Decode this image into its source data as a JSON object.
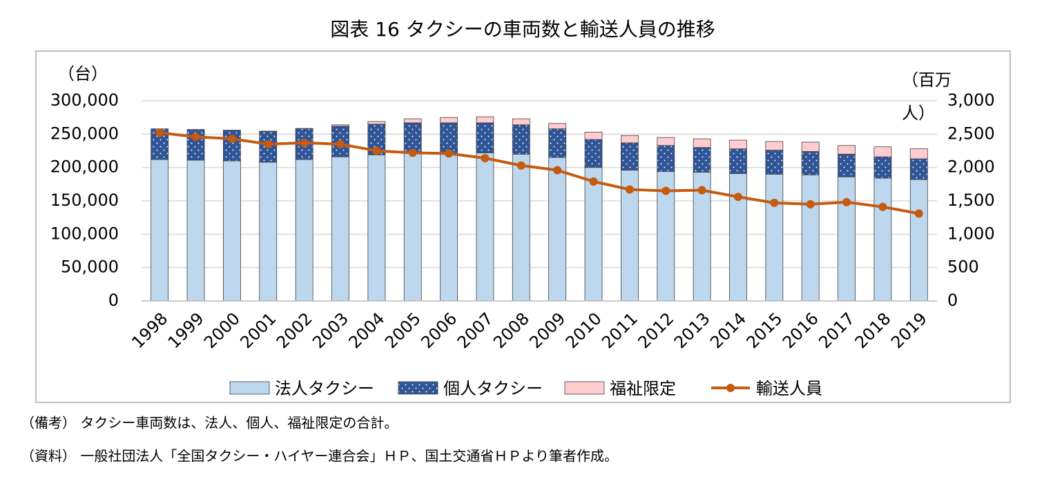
{
  "chart_data": {
    "type": "bar-line",
    "title": "図表 16 タクシーの車両数と輸送人員の推移",
    "y_label": "（台）",
    "y2_label": "（百万人）",
    "categories": [
      "1998",
      "1999",
      "2000",
      "2001",
      "2002",
      "2003",
      "2004",
      "2005",
      "2006",
      "2007",
      "2008",
      "2009",
      "2010",
      "2011",
      "2012",
      "2013",
      "2014",
      "2015",
      "2016",
      "2017",
      "2018",
      "2019"
    ],
    "series": [
      {
        "name": "法人タクシー",
        "type": "bar",
        "color": "#bdd7ee",
        "values": [
          212000,
          211000,
          210000,
          208000,
          212000,
          216000,
          219000,
          221000,
          221000,
          222000,
          220000,
          215000,
          200000,
          196000,
          194000,
          193000,
          191000,
          190000,
          189000,
          186000,
          184000,
          182000
        ]
      },
      {
        "name": "個人タクシー",
        "type": "bar",
        "color": "#2f5597",
        "pattern": "dots",
        "values": [
          46000,
          46000,
          46000,
          46000,
          46000,
          46000,
          46000,
          46000,
          46000,
          45000,
          44000,
          43000,
          42000,
          41000,
          39000,
          37000,
          37000,
          36000,
          35000,
          34000,
          32000,
          31000
        ]
      },
      {
        "name": "福祉限定",
        "type": "bar",
        "color": "#ffccd0",
        "values": [
          0,
          0,
          0,
          500,
          500,
          2000,
          4000,
          6000,
          8000,
          9000,
          9000,
          8000,
          11000,
          11000,
          12000,
          13000,
          13000,
          13000,
          14000,
          13000,
          15000,
          15000
        ]
      },
      {
        "name": "輸送人員",
        "type": "line",
        "axis": "y2",
        "color": "#c55a11",
        "values": [
          2520,
          2460,
          2430,
          2350,
          2370,
          2350,
          2250,
          2220,
          2210,
          2140,
          2030,
          1960,
          1790,
          1670,
          1650,
          1660,
          1560,
          1470,
          1450,
          1480,
          1410,
          1310
        ]
      }
    ],
    "ylim": [
      0,
      300000
    ],
    "yticks": [
      0,
      {
        "value": 50000,
        "label": "50,000"
      },
      {
        "value": 100000,
        "label": "100,000"
      },
      {
        "value": 150000,
        "label": "150,000"
      },
      {
        "value": 200000,
        "label": "200,000"
      },
      {
        "value": 250000,
        "label": "250,000"
      },
      {
        "value": 300000,
        "label": "300,000"
      }
    ],
    "y2lim": [
      0,
      3000
    ],
    "y2ticks": [
      0,
      500,
      {
        "value": 1000,
        "label": "1,000"
      },
      {
        "value": 1500,
        "label": "1,500"
      },
      {
        "value": 2000,
        "label": "2,000"
      },
      {
        "value": 2500,
        "label": "2,500"
      },
      {
        "value": 3000,
        "label": "3,000"
      }
    ],
    "grid": true,
    "legend": "bottom",
    "notes": [
      "（備考） タクシー車両数は、法人、個人、福祉限定の合計。",
      "（資料） 一般社団法人「全国タクシー・ハイヤー連合会」ＨＰ、国土交通省ＨＰより筆者作成。"
    ]
  }
}
